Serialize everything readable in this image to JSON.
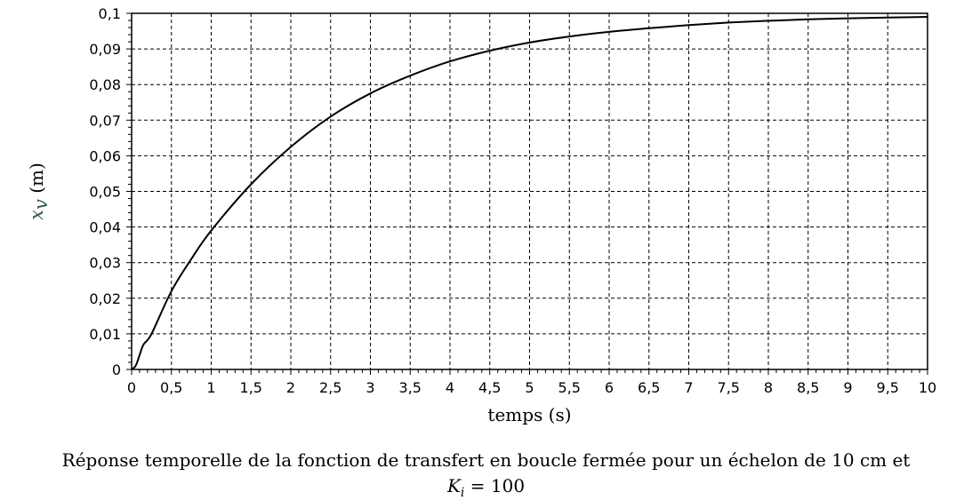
{
  "chart_data": {
    "type": "line",
    "xlabel": "temps (s)",
    "ylabel": {
      "variable": "x",
      "subscript": "v",
      "unit": "(m)"
    },
    "xlim": [
      0,
      10
    ],
    "ylim": [
      0,
      0.1
    ],
    "x_ticks": [
      "0",
      "0,5",
      "1",
      "1,5",
      "2",
      "2,5",
      "3",
      "3,5",
      "4",
      "4,5",
      "5",
      "5,5",
      "6",
      "6,5",
      "7",
      "7,5",
      "8",
      "8,5",
      "9",
      "9,5",
      "10"
    ],
    "y_ticks": [
      "0",
      "0,01",
      "0,02",
      "0,03",
      "0,04",
      "0,05",
      "0,06",
      "0,07",
      "0,08",
      "0,09",
      "0,1"
    ],
    "grid": true,
    "series": [
      {
        "x": [
          0,
          0.05,
          0.1,
          0.15,
          0.25,
          0.5,
          0.75,
          1,
          1.5,
          2,
          2.5,
          3,
          3.5,
          4,
          4.5,
          5,
          5.5,
          6,
          6.5,
          7,
          7.5,
          8,
          8.5,
          9,
          9.5,
          10
        ],
        "y": [
          0,
          0.001,
          0.004,
          0.007,
          0.01,
          0.022,
          0.031,
          0.039,
          0.052,
          0.0625,
          0.071,
          0.0775,
          0.0825,
          0.0865,
          0.0895,
          0.0918,
          0.0935,
          0.0948,
          0.0958,
          0.0967,
          0.0974,
          0.0979,
          0.0983,
          0.0986,
          0.0988,
          0.099
        ]
      }
    ],
    "line_color": "#000000"
  },
  "caption": {
    "line1": "Réponse temporelle de la fonction de transfert en boucle fermée pour un échelon de 10 cm et",
    "line2_var": "K",
    "line2_sub": "i",
    "line2_rest": " = 100"
  }
}
